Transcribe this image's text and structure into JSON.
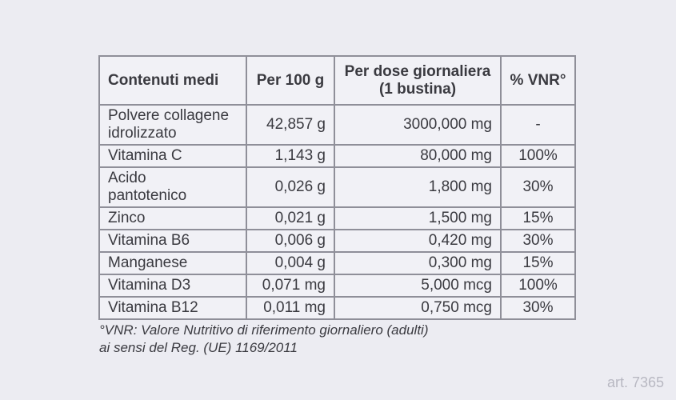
{
  "page": {
    "art_number": "art. 7365"
  },
  "colors": {
    "page_background": "#ececf2",
    "cell_background": "#f1f1f6",
    "border": "#8f8f99",
    "text": "#3a3a40",
    "watermark_text": "#b8b8c2"
  },
  "table": {
    "headers": [
      {
        "label": "Contenuti medi"
      },
      {
        "label": "Per 100 g"
      },
      {
        "label": "Per dose giornaliera",
        "sub": "(1 bustina)"
      },
      {
        "label": "% VNR°"
      }
    ],
    "rows": [
      {
        "name": "Polvere collagene\nidrolizzato",
        "per_100g": "42,857 g",
        "per_dose": "3000,000 mg",
        "vnr": "-"
      },
      {
        "name": "Vitamina C",
        "per_100g": "1,143 g",
        "per_dose": "80,000 mg",
        "vnr": "100%"
      },
      {
        "name": "Acido\npantotenico",
        "per_100g": "0,026 g",
        "per_dose": "1,800 mg",
        "vnr": "30%"
      },
      {
        "name": "Zinco",
        "per_100g": "0,021 g",
        "per_dose": "1,500 mg",
        "vnr": "15%"
      },
      {
        "name": "Vitamina B6",
        "per_100g": "0,006 g",
        "per_dose": "0,420 mg",
        "vnr": "30%"
      },
      {
        "name": "Manganese",
        "per_100g": "0,004 g",
        "per_dose": "0,300 mg",
        "vnr": "15%"
      },
      {
        "name": "Vitamina D3",
        "per_100g": "0,071 mg",
        "per_dose": "5,000 mcg",
        "vnr": "100%"
      },
      {
        "name": "Vitamina B12",
        "per_100g": "0,011 mg",
        "per_dose": "0,750 mcg",
        "vnr": "30%"
      }
    ]
  },
  "footnote": {
    "line1": "°VNR: Valore Nutritivo di riferimento giornaliero (adulti)",
    "line2": "ai sensi del Reg. (UE) 1169/2011"
  }
}
